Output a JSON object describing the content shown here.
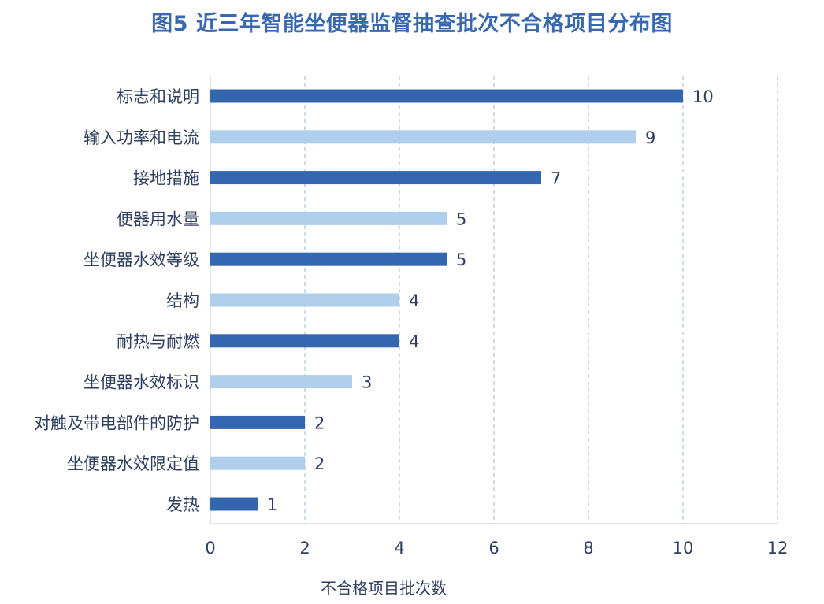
{
  "chart_data": {
    "type": "bar",
    "orientation": "horizontal",
    "title": "图5  近三年智能坐便器监督抽查批次不合格项目分布图",
    "xlabel": "不合格项目批次数",
    "ylabel": "",
    "xlim": [
      0,
      12
    ],
    "xticks": [
      0,
      2,
      4,
      6,
      8,
      10,
      12
    ],
    "grid": "vertical dashed",
    "legend": "none",
    "categories": [
      "标志和说明",
      "输入功率和电流",
      "接地措施",
      "便器用水量",
      "坐便器水效等级",
      "结构",
      "耐热与耐燃",
      "坐便器水效标识",
      "对触及带电部件的防护",
      "坐便器水效限定值",
      "发热"
    ],
    "values": [
      10,
      9,
      7,
      5,
      5,
      4,
      4,
      3,
      2,
      2,
      1
    ],
    "data_labels": [
      "10",
      "9",
      "7",
      "5",
      "5",
      "4",
      "4",
      "3",
      "2",
      "2",
      "1"
    ],
    "colors": {
      "dark_bar": "#3566b0",
      "light_bar": "#b0cfec",
      "title": "#3868b0",
      "text": "#2f3f5f",
      "grid": "#a9c4de"
    }
  }
}
